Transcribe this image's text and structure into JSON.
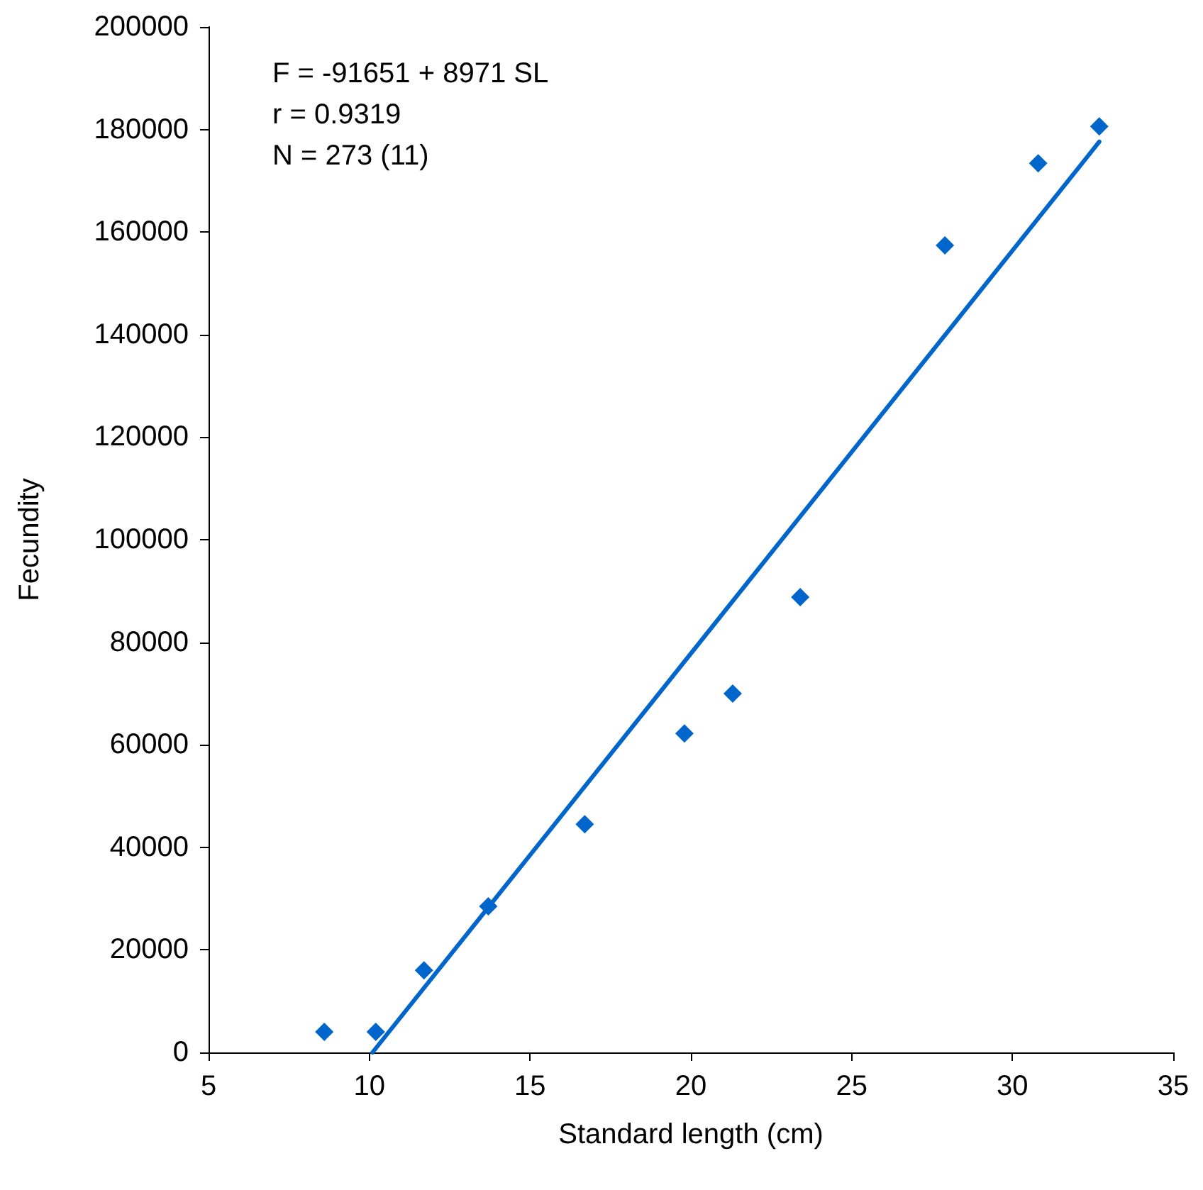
{
  "chart_data": {
    "type": "scatter",
    "xlabel": "Standard length (cm)",
    "ylabel": "Fecundity",
    "annotations": [
      "F = -91651 + 8971 SL",
      "r = 0.9319",
      "N = 273 (11)"
    ],
    "series": [
      {
        "type": "scatter",
        "color": "#0066cc",
        "marker": "diamond",
        "x": [
          8.6,
          10.2,
          11.7,
          13.7,
          16.7,
          19.8,
          21.3,
          23.4,
          27.9,
          30.8,
          32.7
        ],
        "values": [
          4000,
          4000,
          16000,
          28500,
          44500,
          62200,
          70000,
          88800,
          157400,
          173400,
          180600
        ]
      },
      {
        "type": "line",
        "color": "#0066cc",
        "line_style": "solid",
        "marker": "none",
        "x": [
          10.1,
          32.7
        ],
        "values": [
          0,
          177600
        ]
      }
    ],
    "xlim": [
      5,
      35
    ],
    "xticks": [
      5,
      10,
      15,
      20,
      25,
      30,
      35
    ],
    "ylim": [
      0,
      200000
    ],
    "yticks": [
      0,
      20000,
      40000,
      60000,
      80000,
      100000,
      120000,
      140000,
      160000,
      180000,
      200000
    ],
    "grid": false
  }
}
